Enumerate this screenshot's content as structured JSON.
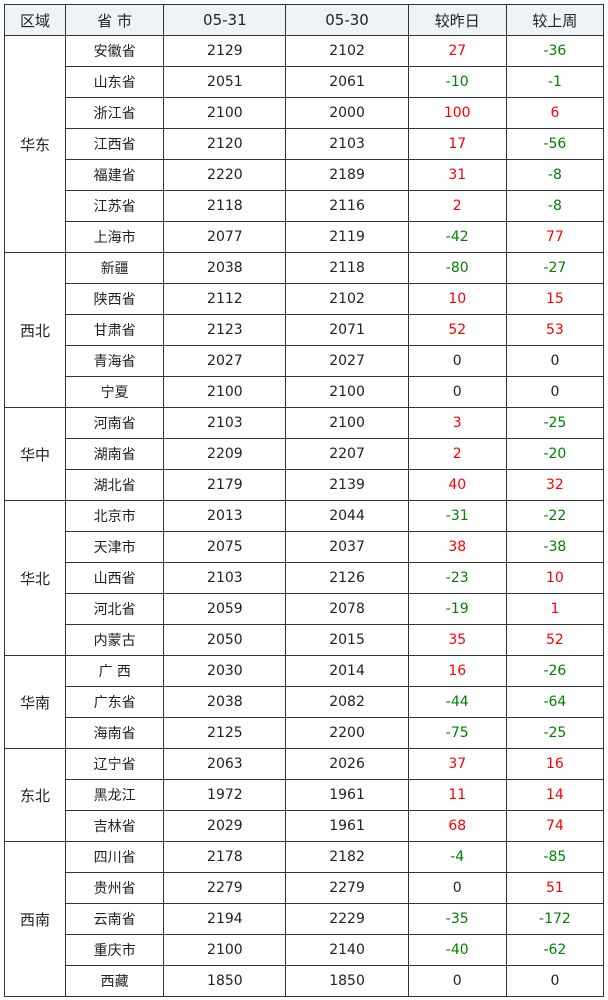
{
  "colors": {
    "positive": "#ff0000",
    "negative": "#008000",
    "zero": "#222222",
    "header_bg": "#eef3f7"
  },
  "headers": [
    "区域",
    "省 市",
    "05-31",
    "05-30",
    "较昨日",
    "较上周"
  ],
  "groups": [
    {
      "region": "华东",
      "rows": [
        [
          "安徽省",
          "2129",
          "2102",
          "27",
          "-36"
        ],
        [
          "山东省",
          "2051",
          "2061",
          "-10",
          "-1"
        ],
        [
          "浙江省",
          "2100",
          "2000",
          "100",
          "6"
        ],
        [
          "江西省",
          "2120",
          "2103",
          "17",
          "-56"
        ],
        [
          "福建省",
          "2220",
          "2189",
          "31",
          "-8"
        ],
        [
          "江苏省",
          "2118",
          "2116",
          "2",
          "-8"
        ],
        [
          "上海市",
          "2077",
          "2119",
          "-42",
          "77"
        ]
      ]
    },
    {
      "region": "西北",
      "rows": [
        [
          "新疆",
          "2038",
          "2118",
          "-80",
          "-27"
        ],
        [
          "陕西省",
          "2112",
          "2102",
          "10",
          "15"
        ],
        [
          "甘肃省",
          "2123",
          "2071",
          "52",
          "53"
        ],
        [
          "青海省",
          "2027",
          "2027",
          "0",
          "0"
        ],
        [
          "宁夏",
          "2100",
          "2100",
          "0",
          "0"
        ]
      ]
    },
    {
      "region": "华中",
      "rows": [
        [
          "河南省",
          "2103",
          "2100",
          "3",
          "-25"
        ],
        [
          "湖南省",
          "2209",
          "2207",
          "2",
          "-20"
        ],
        [
          "湖北省",
          "2179",
          "2139",
          "40",
          "32"
        ]
      ]
    },
    {
      "region": "华北",
      "rows": [
        [
          "北京市",
          "2013",
          "2044",
          "-31",
          "-22"
        ],
        [
          "天津市",
          "2075",
          "2037",
          "38",
          "-38"
        ],
        [
          "山西省",
          "2103",
          "2126",
          "-23",
          "10"
        ],
        [
          "河北省",
          "2059",
          "2078",
          "-19",
          "1"
        ],
        [
          "内蒙古",
          "2050",
          "2015",
          "35",
          "52"
        ]
      ]
    },
    {
      "region": "华南",
      "rows": [
        [
          "广 西",
          "2030",
          "2014",
          "16",
          "-26"
        ],
        [
          "广东省",
          "2038",
          "2082",
          "-44",
          "-64"
        ],
        [
          "海南省",
          "2125",
          "2200",
          "-75",
          "-25"
        ]
      ]
    },
    {
      "region": "东北",
      "rows": [
        [
          "辽宁省",
          "2063",
          "2026",
          "37",
          "16"
        ],
        [
          "黑龙江",
          "1972",
          "1961",
          "11",
          "14"
        ],
        [
          "吉林省",
          "2029",
          "1961",
          "68",
          "74"
        ]
      ]
    },
    {
      "region": "西南",
      "rows": [
        [
          "四川省",
          "2178",
          "2182",
          "-4",
          "-85"
        ],
        [
          "贵州省",
          "2279",
          "2279",
          "0",
          "51"
        ],
        [
          "云南省",
          "2194",
          "2229",
          "-35",
          "-172"
        ],
        [
          "重庆市",
          "2100",
          "2140",
          "-40",
          "-62"
        ],
        [
          "西藏",
          "1850",
          "1850",
          "0",
          "0"
        ]
      ]
    }
  ]
}
